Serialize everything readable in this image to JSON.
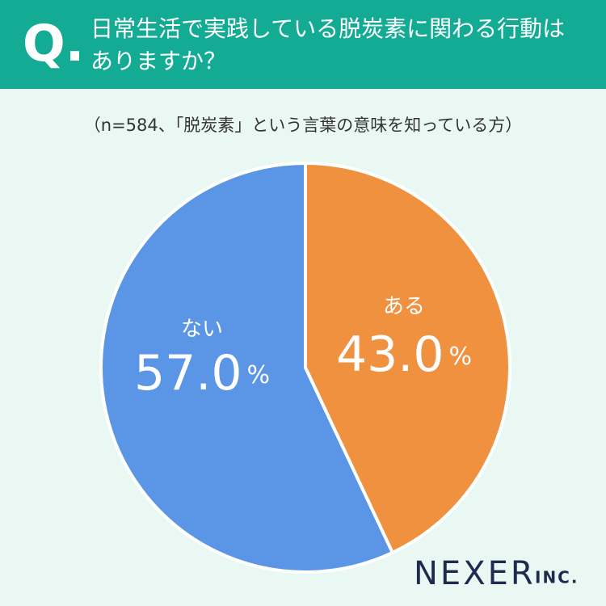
{
  "chart_data": {
    "type": "pie",
    "question_mark": "Q.",
    "title": "日常生活で実践している脱炭素に関わる行動はありますか？",
    "subtitle": "（n=584、「脱炭素」という言葉の意味を知っている方）",
    "categories": [
      "ある",
      "ない"
    ],
    "values": [
      43.0,
      57.0
    ],
    "value_labels": [
      "43.0%",
      "57.0%"
    ],
    "colors": [
      "#f0913f",
      "#5b95e5"
    ],
    "logo": "NEXER",
    "logo_suffix": "INC."
  }
}
